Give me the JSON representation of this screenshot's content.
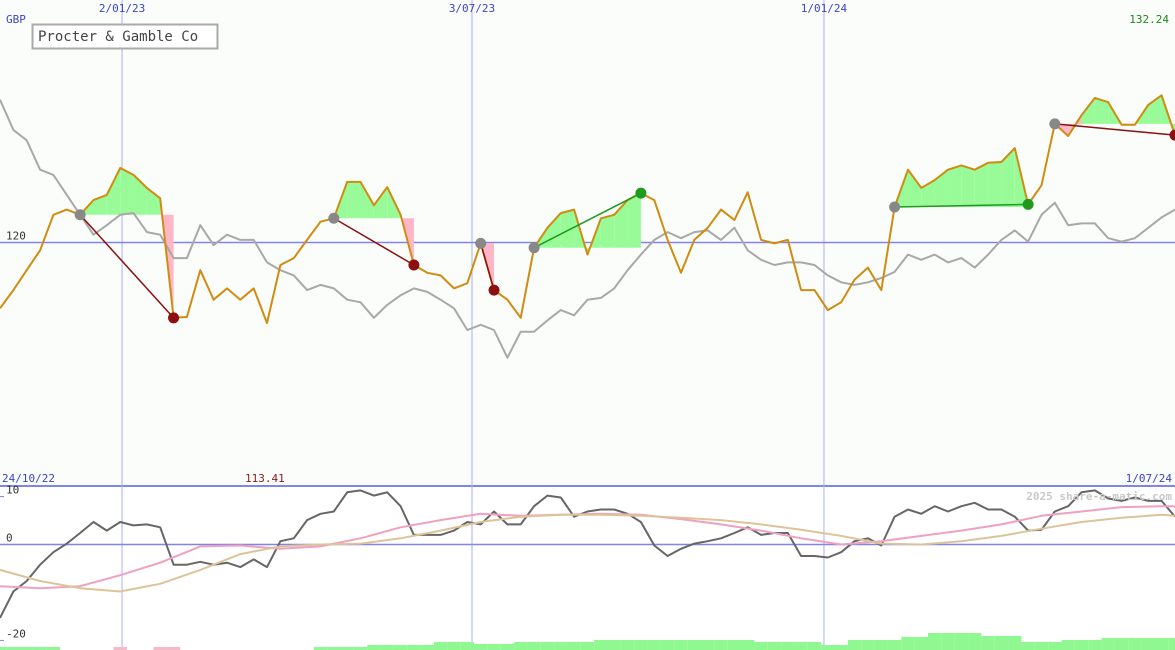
{
  "chart_data": [
    {
      "type": "line",
      "title": "Procter & Gamble Co",
      "y_unit_label": "GBP",
      "x_start_label": "24/10/22",
      "x_end_label": "1/07/24",
      "last_price_label": "132.24",
      "low_label": "113.41",
      "xlim": [
        0,
        88
      ],
      "xticks": [
        {
          "value": 9.14,
          "label": "2/01/23"
        },
        {
          "value": 35.35,
          "label": "3/07/23"
        },
        {
          "value": 61.71,
          "label": "1/01/24"
        }
      ],
      "ylim": [
        92,
        148
      ],
      "yticks": [
        120
      ],
      "grid": true,
      "series": [
        {
          "color": "#a8a8a8",
          "values": [
            136.5,
            133.0,
            131.8,
            128.4,
            127.8,
            125.5,
            123.2,
            120.9,
            122.0,
            123.2,
            123.4,
            121.2,
            120.9,
            118.2,
            118.2,
            122.0,
            119.7,
            120.9,
            120.3,
            120.3,
            117.7,
            116.8,
            116.2,
            114.5,
            115.1,
            114.7,
            113.4,
            113.1,
            111.3,
            112.8,
            113.9,
            114.7,
            114.3,
            113.4,
            112.4,
            109.9,
            110.5,
            109.9,
            106.7,
            109.7,
            109.7,
            111.0,
            112.2,
            111.6,
            113.4,
            113.6,
            114.7,
            116.8,
            118.6,
            120.3,
            121.2,
            120.5,
            121.2,
            121.4,
            120.3,
            121.7,
            119.1,
            118.0,
            117.4,
            117.7,
            117.7,
            117.4,
            116.2,
            115.4,
            115.1,
            115.4,
            115.9,
            116.6,
            118.6,
            118.0,
            118.6,
            117.7,
            118.2,
            117.1,
            118.6,
            120.3,
            121.4,
            120.1,
            123.2,
            124.6,
            122.0,
            122.2,
            122.2,
            120.5,
            120.1,
            120.5,
            121.7,
            122.9,
            123.8
          ]
        },
        {
          "color": "#d08c10",
          "values": [
            112.4,
            114.5,
            116.8,
            119.1,
            123.2,
            123.8,
            123.2,
            124.9,
            125.5,
            128.6,
            127.8,
            126.3,
            125.1,
            111.3,
            111.4,
            116.8,
            113.4,
            114.7,
            113.4,
            114.7,
            110.7,
            117.4,
            118.2,
            120.3,
            122.4,
            122.8,
            127.0,
            127.0,
            124.3,
            126.4,
            123.2,
            117.4,
            116.5,
            116.2,
            114.7,
            115.3,
            119.9,
            114.5,
            113.4,
            111.3,
            119.4,
            121.7,
            123.4,
            123.8,
            118.6,
            122.8,
            123.2,
            124.9,
            125.7,
            124.9,
            120.3,
            116.5,
            120.3,
            121.7,
            123.8,
            122.6,
            125.8,
            120.3,
            119.9,
            120.3,
            114.5,
            114.5,
            112.2,
            113.1,
            115.7,
            117.1,
            114.5,
            124.1,
            128.4,
            126.3,
            127.2,
            128.4,
            128.9,
            128.4,
            129.2,
            129.3,
            130.9,
            124.4,
            126.6,
            133.7,
            132.3,
            134.7,
            136.7,
            136.2,
            133.6,
            133.6,
            135.9,
            137.0,
            132.4
          ]
        }
      ],
      "trades": [
        {
          "entry": 6,
          "exit": 13,
          "color": "#8b1010"
        },
        {
          "entry": 25,
          "exit": 31,
          "color": "#8b1010"
        },
        {
          "entry": 36,
          "exit": 37,
          "color": "#8b1010"
        },
        {
          "entry": 40,
          "exit": 48,
          "color": "#1f9a1f"
        },
        {
          "entry": 67,
          "exit": 77,
          "color": "#1f9a1f"
        },
        {
          "entry": 79,
          "exit": 88,
          "color": "#8b1010"
        }
      ],
      "up_color": "#98fb98",
      "down_color": "#ffb6c8",
      "entry_color": "#888888"
    },
    {
      "type": "line",
      "watermark": "2025 share-a-matic.com",
      "xlim": [
        0,
        88
      ],
      "ylim": [
        -22,
        12
      ],
      "yticks": [
        10,
        0,
        -20
      ],
      "series": [
        {
          "color": "#666666",
          "values": [
            -15.3,
            -9.8,
            -7.6,
            -4.2,
            -1.6,
            0.2,
            2.4,
            4.7,
            2.9,
            4.7,
            4.0,
            4.2,
            3.6,
            -4.2,
            -4.2,
            -3.6,
            -4.2,
            -3.8,
            -4.7,
            -3.1,
            -4.7,
            0.7,
            1.3,
            5.1,
            6.4,
            6.9,
            10.9,
            11.3,
            10.2,
            10.9,
            8.0,
            2.0,
            2.0,
            2.0,
            2.9,
            4.7,
            4.2,
            6.9,
            4.2,
            4.2,
            8.0,
            10.2,
            9.8,
            5.8,
            6.9,
            7.3,
            7.3,
            6.4,
            4.7,
            -0.2,
            -2.4,
            -0.9,
            0.2,
            0.7,
            1.3,
            2.4,
            3.6,
            2.0,
            2.4,
            2.4,
            -2.4,
            -2.4,
            -2.7,
            -1.6,
            0.7,
            1.3,
            -0.2,
            5.8,
            7.3,
            6.4,
            8.0,
            6.9,
            8.0,
            8.7,
            7.3,
            7.3,
            5.8,
            2.9,
            3.1,
            6.9,
            8.0,
            10.9,
            11.3,
            9.6,
            9.1,
            9.8,
            9.1,
            9.1,
            5.8
          ]
        },
        {
          "color": "#f0a0c0",
          "x": [
            0,
            3,
            6,
            9,
            12,
            15,
            18,
            21,
            24,
            27,
            30,
            33,
            36,
            39,
            42,
            45,
            48,
            51,
            54,
            57,
            60,
            63,
            66,
            69,
            72,
            75,
            78,
            81,
            84,
            87,
            88
          ],
          "values": [
            -8.7,
            -9.1,
            -8.7,
            -6.4,
            -3.8,
            -0.4,
            -0.2,
            -0.9,
            -0.4,
            1.3,
            3.6,
            5.1,
            6.4,
            6.0,
            6.2,
            6.4,
            6.2,
            5.3,
            4.2,
            2.9,
            1.3,
            0,
            0.7,
            1.8,
            2.9,
            4.2,
            6.0,
            6.9,
            7.8,
            8.0,
            8.0
          ]
        },
        {
          "color": "#dcc49a",
          "x": [
            0,
            3,
            6,
            9,
            12,
            15,
            18,
            21,
            24,
            27,
            30,
            33,
            36,
            39,
            42,
            45,
            48,
            51,
            54,
            57,
            60,
            63,
            66,
            69,
            72,
            75,
            78,
            81,
            84,
            87,
            88
          ],
          "values": [
            -5.3,
            -7.6,
            -9.1,
            -9.8,
            -8.2,
            -5.3,
            -2.0,
            -0.4,
            0,
            0.2,
            1.3,
            2.9,
            4.7,
            5.8,
            6.2,
            6.2,
            6.0,
            5.6,
            5.1,
            4.2,
            3.1,
            1.8,
            0.2,
            0,
            0.7,
            1.8,
            3.3,
            4.7,
            5.6,
            6.2,
            6.0
          ]
        }
      ]
    },
    {
      "type": "bar",
      "xlim": [
        0,
        88
      ],
      "ylim": [
        0,
        20
      ],
      "series": [
        {
          "color": "#90f890",
          "values": [
            3,
            3,
            3,
            3,
            3,
            null,
            null,
            null,
            null,
            null,
            null,
            null,
            null,
            null,
            null,
            null,
            null,
            null,
            null,
            null,
            null,
            null,
            null,
            null,
            3,
            3,
            3,
            3,
            5,
            5,
            5,
            5,
            5,
            8,
            8,
            8,
            6,
            6,
            6,
            8,
            8,
            8,
            8,
            8,
            8,
            10,
            10,
            10,
            10,
            10,
            10,
            10,
            10,
            10,
            10,
            10,
            10,
            8,
            8,
            8,
            8,
            8,
            5,
            5,
            10,
            10,
            10,
            10,
            13,
            13,
            17,
            17,
            17,
            17,
            14,
            14,
            14,
            8,
            8,
            8,
            10,
            10,
            10,
            12,
            12,
            12,
            12,
            12,
            12
          ]
        },
        {
          "color": "#f8b8c8",
          "x": [
            9,
            12,
            13
          ],
          "values": [
            3,
            3,
            3
          ]
        }
      ]
    }
  ]
}
